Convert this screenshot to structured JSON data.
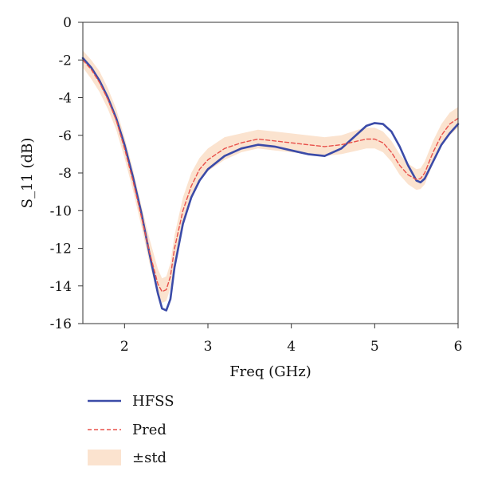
{
  "chart_data": {
    "type": "line",
    "xlabel": "Freq (GHz)",
    "ylabel": "S_11 (dB)",
    "xlim": [
      1.5,
      6
    ],
    "ylim": [
      -16,
      0
    ],
    "xticks": [
      2,
      3,
      4,
      5,
      6
    ],
    "yticks": [
      0,
      -2,
      -4,
      -6,
      -8,
      -10,
      -12,
      -14,
      -16
    ],
    "grid": false,
    "legend_position": "bottom-left, below plot",
    "x": [
      1.5,
      1.6,
      1.7,
      1.8,
      1.9,
      2.0,
      2.1,
      2.2,
      2.3,
      2.4,
      2.45,
      2.5,
      2.55,
      2.6,
      2.7,
      2.8,
      2.9,
      3.0,
      3.2,
      3.4,
      3.6,
      3.8,
      4.0,
      4.2,
      4.4,
      4.6,
      4.8,
      4.9,
      5.0,
      5.1,
      5.2,
      5.3,
      5.4,
      5.5,
      5.55,
      5.6,
      5.7,
      5.8,
      5.9,
      6.0
    ],
    "series": [
      {
        "name": "HFSS",
        "style": "solid",
        "color": "#3b4ba8",
        "values": [
          -1.9,
          -2.4,
          -3.1,
          -4.0,
          -5.1,
          -6.5,
          -8.2,
          -10.1,
          -12.3,
          -14.4,
          -15.2,
          -15.3,
          -14.7,
          -13.0,
          -10.7,
          -9.3,
          -8.4,
          -7.8,
          -7.1,
          -6.7,
          -6.5,
          -6.6,
          -6.8,
          -7.0,
          -7.1,
          -6.7,
          -5.9,
          -5.5,
          -5.35,
          -5.4,
          -5.8,
          -6.6,
          -7.6,
          -8.4,
          -8.5,
          -8.3,
          -7.4,
          -6.5,
          -5.9,
          -5.4
        ]
      },
      {
        "name": "Pred",
        "style": "dashed",
        "color": "#e8504a",
        "values": [
          -2.0,
          -2.5,
          -3.2,
          -4.1,
          -5.2,
          -6.7,
          -8.4,
          -10.3,
          -12.2,
          -13.9,
          -14.3,
          -14.2,
          -13.5,
          -12.0,
          -10.0,
          -8.7,
          -7.8,
          -7.3,
          -6.7,
          -6.4,
          -6.2,
          -6.3,
          -6.4,
          -6.5,
          -6.6,
          -6.5,
          -6.3,
          -6.2,
          -6.2,
          -6.4,
          -6.9,
          -7.6,
          -8.1,
          -8.35,
          -8.3,
          -8.0,
          -6.9,
          -6.0,
          -5.4,
          -5.1
        ]
      }
    ],
    "band": {
      "name": "±std",
      "color": "#fbe3cf",
      "lower": [
        -2.4,
        -3.0,
        -3.7,
        -4.6,
        -5.7,
        -7.2,
        -8.9,
        -10.8,
        -12.8,
        -14.5,
        -14.9,
        -14.8,
        -14.1,
        -12.7,
        -10.7,
        -9.4,
        -8.4,
        -7.9,
        -7.3,
        -6.9,
        -6.7,
        -6.8,
        -6.9,
        -7.0,
        -7.1,
        -7.0,
        -6.8,
        -6.7,
        -6.7,
        -6.9,
        -7.4,
        -8.1,
        -8.6,
        -8.9,
        -8.85,
        -8.6,
        -7.5,
        -6.6,
        -6.0,
        -5.6
      ],
      "upper": [
        -1.5,
        -2.0,
        -2.6,
        -3.5,
        -4.6,
        -6.1,
        -7.8,
        -9.7,
        -11.5,
        -13.1,
        -13.6,
        -13.5,
        -12.8,
        -11.3,
        -9.3,
        -8.0,
        -7.2,
        -6.7,
        -6.1,
        -5.9,
        -5.7,
        -5.8,
        -5.9,
        -6.0,
        -6.1,
        -6.0,
        -5.7,
        -5.6,
        -5.6,
        -5.8,
        -6.3,
        -7.0,
        -7.5,
        -7.8,
        -7.75,
        -7.4,
        -6.3,
        -5.4,
        -4.8,
        -4.5
      ]
    },
    "legend": [
      {
        "label": "HFSS",
        "kind": "line",
        "color": "#3b4ba8"
      },
      {
        "label": "Pred",
        "kind": "dashed",
        "color": "#e8504a"
      },
      {
        "label": "±std",
        "kind": "patch",
        "color": "#fbe3cf"
      }
    ]
  }
}
